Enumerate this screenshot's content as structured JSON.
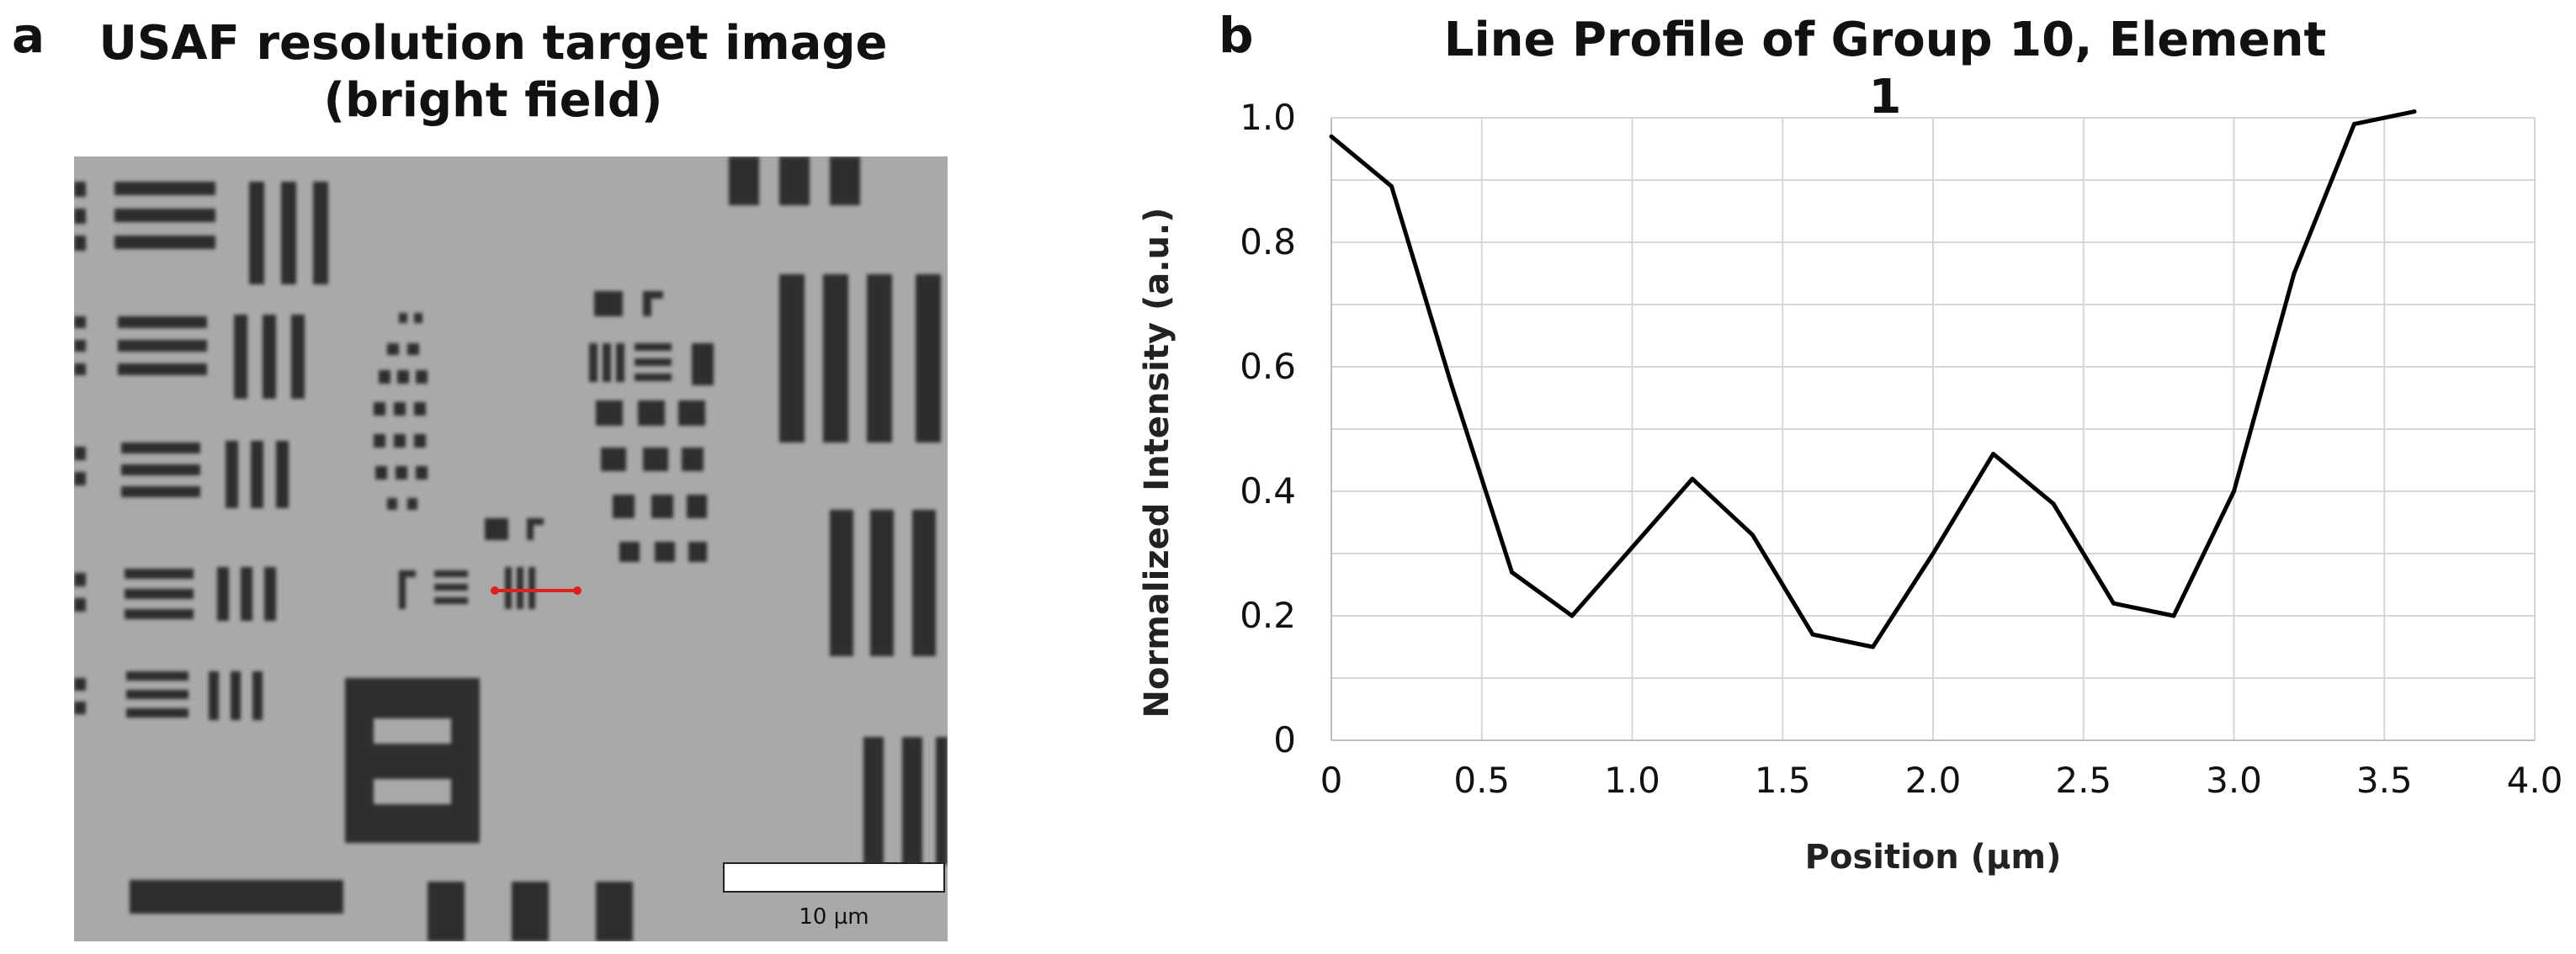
{
  "panel_a": {
    "letter": "a",
    "title_line1": "USAF resolution target image",
    "title_line2": "(bright field)",
    "scale_bar_label": "10 µm",
    "line_color": "#e0201c"
  },
  "panel_b": {
    "letter": "b"
  },
  "chart_data": {
    "type": "line",
    "title": "Line Profile of Group 10, Element 1",
    "xlabel": "Position (µm)",
    "ylabel": "Normalized Intensity (a.u.)",
    "xlim": [
      0,
      4.0
    ],
    "ylim": [
      0,
      1.0
    ],
    "xticks": [
      0,
      0.5,
      1.0,
      1.5,
      2.0,
      2.5,
      3.0,
      3.5,
      4.0
    ],
    "xtick_labels": [
      "0",
      "0.5",
      "1.0",
      "1.5",
      "2.0",
      "2.5",
      "3.0",
      "3.5",
      "4.0"
    ],
    "yticks": [
      0,
      0.2,
      0.4,
      0.6,
      0.8,
      1.0
    ],
    "ytick_labels": [
      "0",
      "0.2",
      "0.4",
      "0.6",
      "0.8",
      "1.0"
    ],
    "grid": true,
    "series": [
      {
        "name": "profile",
        "color": "#000000",
        "x": [
          0,
          0.2,
          0.4,
          0.6,
          0.8,
          1.0,
          1.2,
          1.4,
          1.6,
          1.8,
          2.0,
          2.2,
          2.4,
          2.6,
          2.8,
          3.0,
          3.2,
          3.4,
          3.6
        ],
        "y": [
          0.97,
          0.89,
          0.57,
          0.27,
          0.2,
          0.31,
          0.42,
          0.33,
          0.17,
          0.15,
          0.3,
          0.46,
          0.38,
          0.22,
          0.2,
          0.4,
          0.75,
          0.99,
          1.01
        ]
      }
    ]
  }
}
